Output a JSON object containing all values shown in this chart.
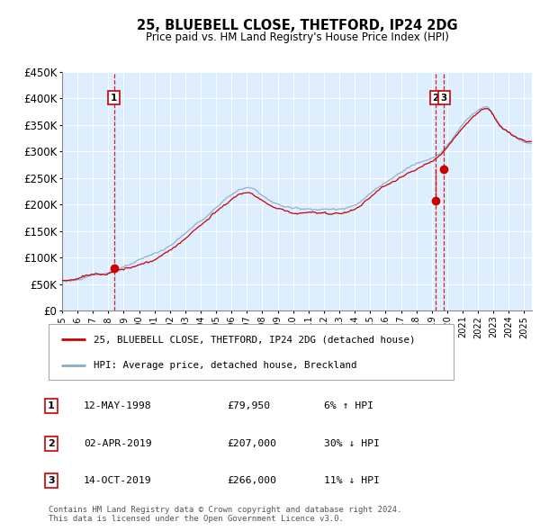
{
  "title": "25, BLUEBELL CLOSE, THETFORD, IP24 2DG",
  "subtitle": "Price paid vs. HM Land Registry's House Price Index (HPI)",
  "footer": "Contains HM Land Registry data © Crown copyright and database right 2024.\nThis data is licensed under the Open Government Licence v3.0.",
  "legend_line1": "25, BLUEBELL CLOSE, THETFORD, IP24 2DG (detached house)",
  "legend_line2": "HPI: Average price, detached house, Breckland",
  "transactions": [
    {
      "num": "1",
      "date": "12-MAY-1998",
      "price": "£79,950",
      "hpi": "6% ↑ HPI"
    },
    {
      "num": "2",
      "date": "02-APR-2019",
      "price": "£207,000",
      "hpi": "30% ↓ HPI"
    },
    {
      "num": "3",
      "date": "14-OCT-2019",
      "price": "£266,000",
      "hpi": "11% ↓ HPI"
    }
  ],
  "ylim": [
    0,
    450000
  ],
  "yticks": [
    0,
    50000,
    100000,
    150000,
    200000,
    250000,
    300000,
    350000,
    400000,
    450000
  ],
  "ytick_labels": [
    "£0",
    "£50K",
    "£100K",
    "£150K",
    "£200K",
    "£250K",
    "£300K",
    "£350K",
    "£400K",
    "£450K"
  ],
  "xlim_start": 1995.0,
  "xlim_end": 2025.5,
  "red_color": "#cc0000",
  "blue_color": "#88aacc",
  "bg_color": "#ddeeff",
  "marker_color": "#cc0000",
  "dashed_color": "#cc0000",
  "sale1_x": 1998.37,
  "sale1_y": 79950,
  "sale2_x": 2019.25,
  "sale2_y": 207000,
  "sale3_x": 2019.79,
  "sale3_y": 266000,
  "figwidth": 6.0,
  "figheight": 5.9,
  "dpi": 100
}
